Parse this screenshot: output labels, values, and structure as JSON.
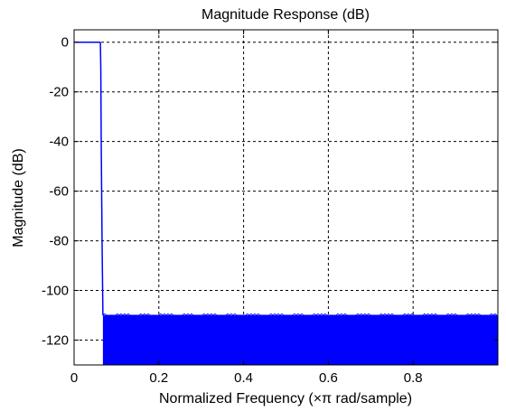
{
  "chart_data": {
    "type": "line",
    "title": "Magnitude Response (dB)",
    "xlabel": "Normalized Frequency (×π rad/sample)",
    "ylabel": "Magnitude (dB)",
    "xlim": [
      0,
      1
    ],
    "ylim": [
      -130,
      5
    ],
    "xticks": [
      0,
      0.2,
      0.4,
      0.6,
      0.8
    ],
    "xtick_labels": [
      "0",
      "0.2",
      "0.4",
      "0.6",
      "0.8"
    ],
    "yticks": [
      0,
      -20,
      -40,
      -60,
      -80,
      -100,
      -120
    ],
    "ytick_labels": [
      "0",
      "-20",
      "-40",
      "-60",
      "-80",
      "-100",
      "-120"
    ],
    "grid": true,
    "line_color": "#0000ff",
    "series": [
      {
        "passband": {
          "x": [
            0,
            0.062
          ],
          "y": [
            0,
            0
          ]
        },
        "transition": {
          "x": [
            0.062,
            0.063,
            0.064,
            0.066,
            0.068
          ],
          "y": [
            0,
            -10,
            -40,
            -80,
            -110
          ]
        },
        "stopband": {
          "x_range": [
            0.068,
            1.0
          ],
          "y_range": [
            -130,
            -110
          ]
        }
      }
    ]
  }
}
